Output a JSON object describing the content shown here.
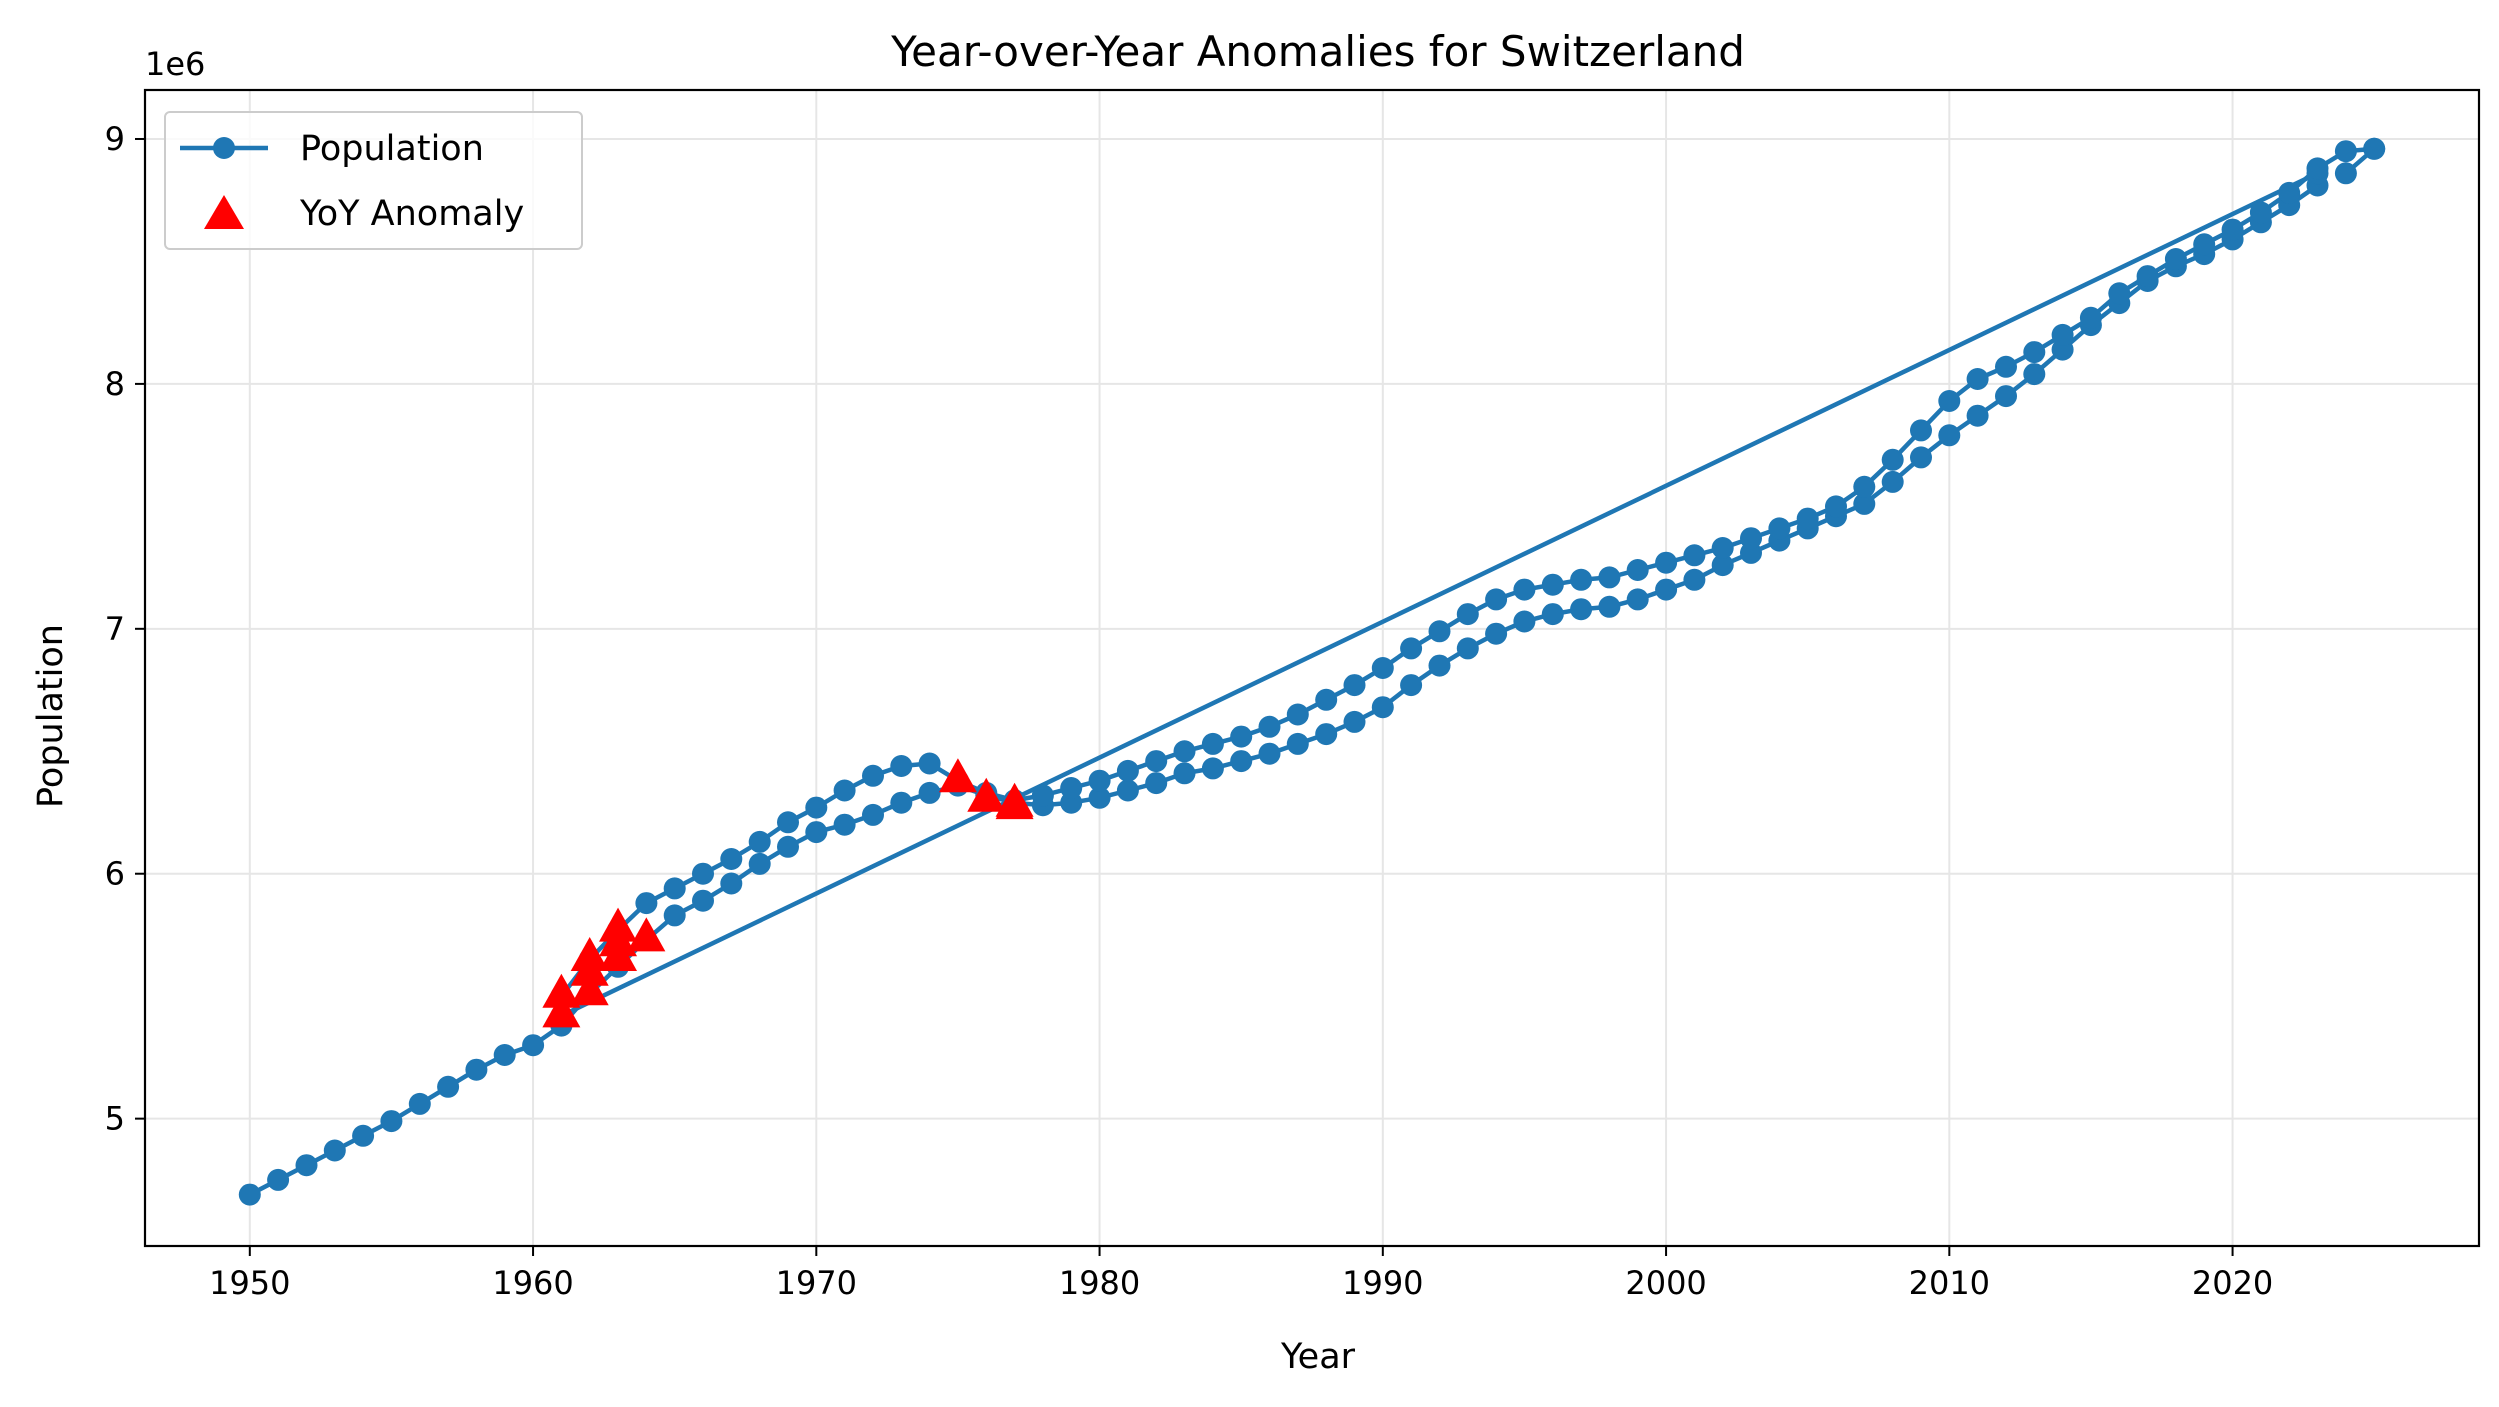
{
  "chart_data": {
    "type": "line",
    "title": "Year-over-Year Anomalies for Switzerland",
    "xlabel": "Year",
    "ylabel": "Population",
    "y_offset_label": "1e6",
    "y_multiplier": 1000000,
    "xlim": [
      1946.3,
      2028.7
    ],
    "ylim": [
      4.48,
      9.2
    ],
    "x_ticks": [
      1950,
      1960,
      1970,
      1980,
      1990,
      2000,
      2010,
      2020
    ],
    "x_tick_labels": [
      "1950",
      "1960",
      "1970",
      "1980",
      "1990",
      "2000",
      "2010",
      "2020"
    ],
    "y_ticks": [
      5,
      6,
      7,
      8,
      9
    ],
    "y_tick_labels": [
      "5",
      "6",
      "7",
      "8",
      "9"
    ],
    "grid": true,
    "legend_position": "upper-left",
    "series": [
      {
        "name": "Population",
        "kind": "line-marker",
        "color": "#1f77b4",
        "segments": [
          {
            "x": [
              1950,
              1951,
              1952,
              1953,
              1954,
              1955,
              1956,
              1957,
              1958,
              1959,
              1960,
              1961,
              1962,
              1963,
              1964,
              1965,
              1966,
              1967,
              1968,
              1969,
              1970,
              1971,
              1972,
              1973,
              1974,
              1975,
              1976,
              1977,
              1978,
              1979,
              1980,
              1981,
              1982,
              1983,
              1984,
              1985,
              1986,
              1987,
              1988,
              1989,
              1990,
              1991,
              1992,
              1993,
              1994,
              1995,
              1996,
              1997,
              1998,
              1999,
              2000,
              2001,
              2002,
              2003,
              2004,
              2005,
              2006,
              2007,
              2008,
              2009,
              2010,
              2011,
              2012,
              2013,
              2014,
              2015,
              2016,
              2017,
              2018,
              2019,
              2020,
              2021,
              2022,
              2023
            ],
            "y": [
              4.69,
              4.75,
              4.81,
              4.87,
              4.93,
              4.99,
              5.06,
              5.13,
              5.2,
              5.26,
              5.3,
              5.38,
              5.51,
              5.62,
              5.73,
              5.83,
              5.89,
              5.96,
              6.04,
              6.11,
              6.17,
              6.2,
              6.24,
              6.29,
              6.33,
              6.36,
              6.32,
              6.29,
              6.28,
              6.29,
              6.31,
              6.34,
              6.37,
              6.41,
              6.43,
              6.46,
              6.49,
              6.53,
              6.57,
              6.62,
              6.68,
              6.77,
              6.85,
              6.92,
              6.98,
              7.03,
              7.06,
              7.08,
              7.09,
              7.12,
              7.16,
              7.2,
              7.26,
              7.31,
              7.36,
              7.41,
              7.46,
              7.51,
              7.6,
              7.7,
              7.79,
              7.87,
              7.95,
              8.04,
              8.14,
              8.24,
              8.33,
              8.42,
              8.48,
              8.53,
              8.59,
              8.66,
              8.73,
              8.81
            ]
          },
          {
            "x": [
              2023,
              1961
            ],
            "y": [
              8.86,
              5.42
            ]
          },
          {
            "x": [
              1961,
              1962,
              1963,
              1964,
              1965,
              1966,
              1967,
              1968,
              1969,
              1970,
              1971,
              1972,
              1973,
              1974,
              1975,
              1976,
              1977,
              1978,
              1979,
              1980,
              1981,
              1982,
              1983,
              1984,
              1985,
              1986,
              1987,
              1988,
              1989,
              1990,
              1991,
              1992,
              1993,
              1994,
              1995,
              1996,
              1997,
              1998,
              1999,
              2000,
              2001,
              2002,
              2003,
              2004,
              2005,
              2006,
              2007,
              2008,
              2009,
              2010,
              2011,
              2012,
              2013,
              2014,
              2015,
              2016,
              2017,
              2018,
              2019,
              2020,
              2021,
              2022,
              2023,
              2024,
              2025
            ],
            "y": [
              5.5,
              5.65,
              5.77,
              5.88,
              5.94,
              6.0,
              6.06,
              6.13,
              6.21,
              6.27,
              6.34,
              6.4,
              6.44,
              6.45,
              6.38,
              6.33,
              6.3,
              6.32,
              6.35,
              6.38,
              6.42,
              6.46,
              6.5,
              6.53,
              6.56,
              6.6,
              6.65,
              6.71,
              6.77,
              6.84,
              6.92,
              6.99,
              7.06,
              7.12,
              7.16,
              7.18,
              7.2,
              7.21,
              7.24,
              7.27,
              7.3,
              7.33,
              7.37,
              7.41,
              7.45,
              7.5,
              7.58,
              7.69,
              7.81,
              7.93,
              8.02,
              8.07,
              8.13,
              8.2,
              8.27,
              8.37,
              8.44,
              8.51,
              8.57,
              8.63,
              8.7,
              8.78,
              8.88,
              8.95,
              8.96
            ]
          },
          {
            "x": [
              2025,
              2024
            ],
            "y": [
              8.96,
              8.86
            ]
          }
        ]
      },
      {
        "name": "YoY Anomaly",
        "kind": "scatter-triangle",
        "color": "#ff0000",
        "x": [
          1961,
          1961,
          1962,
          1962,
          1962,
          1963,
          1963,
          1963,
          1964,
          1975,
          1976,
          1977,
          1977
        ],
        "y": [
          5.43,
          5.51,
          5.52,
          5.6,
          5.66,
          5.66,
          5.72,
          5.78,
          5.74,
          6.39,
          6.31,
          6.28,
          6.29
        ]
      }
    ]
  }
}
